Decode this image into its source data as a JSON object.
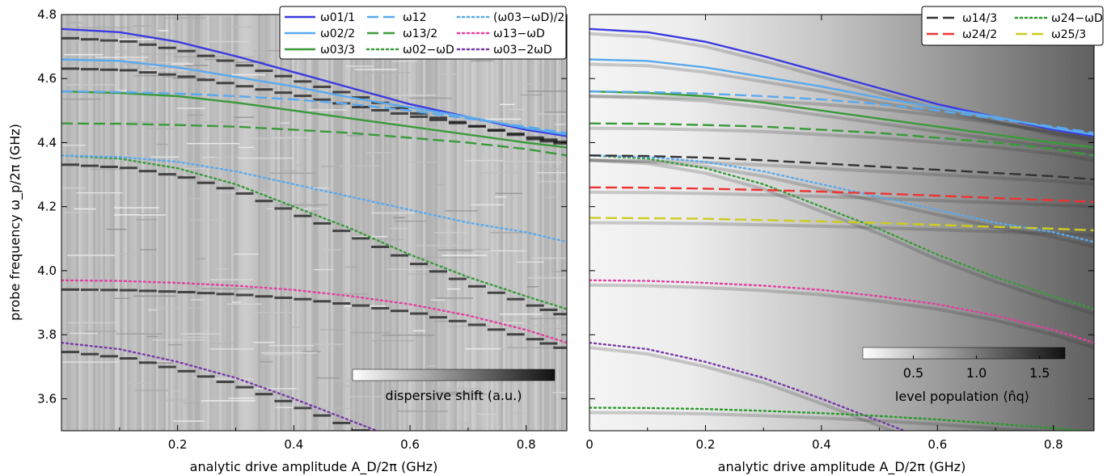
{
  "chart_data": [
    {
      "type": "line",
      "panel": "left",
      "xlabel": "analytic drive amplitude A_D/2π (GHz)",
      "ylabel": "probe frequency ω_p/2π (GHz)",
      "xlim": [
        0.0,
        0.87
      ],
      "ylim": [
        3.5,
        4.8
      ],
      "xticks": [
        {
          "v": 0.2,
          "label": "0.2"
        },
        {
          "v": 0.4,
          "label": "0.4"
        },
        {
          "v": 0.6,
          "label": "0.6"
        },
        {
          "v": 0.8,
          "label": "0.8"
        }
      ],
      "yticks": [
        {
          "v": 3.6,
          "label": "3.6"
        },
        {
          "v": 3.8,
          "label": "3.8"
        },
        {
          "v": 4.0,
          "label": "4.0"
        },
        {
          "v": 4.2,
          "label": "4.2"
        },
        {
          "v": 4.4,
          "label": "4.4"
        },
        {
          "v": 4.6,
          "label": "4.6"
        },
        {
          "v": 4.8,
          "label": "4.8"
        }
      ],
      "background": "measured dispersive shift map (grayscale)",
      "colorbar_label": "dispersive shift (a.u.)",
      "legend_location": "upper right",
      "series": [
        {
          "name": "ω01/1",
          "color": "#3b3be0",
          "dash": "solid",
          "x": [
            0.0,
            0.1,
            0.2,
            0.3,
            0.4,
            0.5,
            0.6,
            0.7,
            0.8,
            0.87
          ],
          "y": [
            4.755,
            4.745,
            4.715,
            4.67,
            4.62,
            4.57,
            4.52,
            4.48,
            4.44,
            4.42
          ]
        },
        {
          "name": "ω02/2",
          "color": "#5aa9ee",
          "dash": "solid",
          "x": [
            0.0,
            0.1,
            0.2,
            0.3,
            0.4,
            0.5,
            0.6,
            0.7,
            0.8,
            0.87
          ],
          "y": [
            4.66,
            4.655,
            4.635,
            4.605,
            4.575,
            4.54,
            4.51,
            4.48,
            4.445,
            4.425
          ]
        },
        {
          "name": "ω03/3",
          "color": "#3a9a3a",
          "dash": "solid",
          "x": [
            0.0,
            0.1,
            0.2,
            0.3,
            0.4,
            0.5,
            0.6,
            0.7,
            0.8,
            0.87
          ],
          "y": [
            4.56,
            4.555,
            4.545,
            4.525,
            4.5,
            4.475,
            4.45,
            4.425,
            4.4,
            4.385
          ]
        },
        {
          "name": "ω12",
          "color": "#5aa9ee",
          "dash": "dashed",
          "x": [
            0.0,
            0.1,
            0.2,
            0.3,
            0.4,
            0.5,
            0.6,
            0.7,
            0.8,
            0.87
          ],
          "y": [
            4.56,
            4.558,
            4.553,
            4.545,
            4.535,
            4.52,
            4.5,
            4.475,
            4.45,
            4.43
          ]
        },
        {
          "name": "ω13/2",
          "color": "#3a9a3a",
          "dash": "dashed",
          "x": [
            0.0,
            0.1,
            0.2,
            0.3,
            0.4,
            0.5,
            0.6,
            0.7,
            0.8,
            0.87
          ],
          "y": [
            4.46,
            4.459,
            4.455,
            4.45,
            4.44,
            4.43,
            4.415,
            4.4,
            4.38,
            4.36
          ]
        },
        {
          "name": "ω02−ωD",
          "color": "#3a9a3a",
          "dash": "dotted",
          "x": [
            0.0,
            0.1,
            0.2,
            0.3,
            0.4,
            0.5,
            0.6,
            0.7,
            0.8,
            0.87
          ],
          "y": [
            4.36,
            4.35,
            4.32,
            4.27,
            4.2,
            4.13,
            4.05,
            3.98,
            3.92,
            3.88
          ]
        },
        {
          "name": "(ω03−ωD)/2",
          "color": "#5aa9ee",
          "dash": "dotted",
          "x": [
            0.0,
            0.1,
            0.2,
            0.3,
            0.4,
            0.5,
            0.6,
            0.7,
            0.8,
            0.87
          ],
          "y": [
            4.36,
            4.355,
            4.34,
            4.31,
            4.27,
            4.23,
            4.19,
            4.15,
            4.12,
            4.09
          ]
        },
        {
          "name": "ω13−ωD",
          "color": "#e040a0",
          "dash": "dotted",
          "x": [
            0.0,
            0.1,
            0.2,
            0.3,
            0.4,
            0.5,
            0.6,
            0.7,
            0.8,
            0.87
          ],
          "y": [
            3.97,
            3.968,
            3.962,
            3.953,
            3.94,
            3.92,
            3.895,
            3.86,
            3.815,
            3.775
          ]
        },
        {
          "name": "ω03−2ωD",
          "color": "#7a3aaa",
          "dash": "dotted",
          "x": [
            0.0,
            0.1,
            0.2,
            0.3,
            0.4,
            0.5,
            0.6
          ],
          "y": [
            3.775,
            3.755,
            3.715,
            3.665,
            3.6,
            3.53,
            3.46
          ]
        }
      ],
      "annotations": []
    },
    {
      "type": "line",
      "panel": "right",
      "xlabel": "analytic drive amplitude A_D/2π (GHz)",
      "xlim": [
        0.0,
        0.87
      ],
      "ylim": [
        3.5,
        4.8
      ],
      "xticks": [
        {
          "v": 0.0,
          "label": "0"
        },
        {
          "v": 0.2,
          "label": "0.2"
        },
        {
          "v": 0.4,
          "label": "0.4"
        },
        {
          "v": 0.6,
          "label": "0.6"
        },
        {
          "v": 0.8,
          "label": "0.8"
        }
      ],
      "background": "simulated level population map (grayscale)",
      "colorbar_label": "level population ⟨n̂q⟩",
      "colorbar_ticks": [
        {
          "v": 0.5,
          "label": "0.5"
        },
        {
          "v": 1.0,
          "label": "1.0"
        },
        {
          "v": 1.5,
          "label": "1.5"
        }
      ],
      "colorbar_range": [
        0.1,
        1.7
      ],
      "legend_location": "upper right",
      "series": [
        {
          "name": "ω01/1",
          "color": "#3b3be0",
          "dash": "solid",
          "x": [
            0.0,
            0.1,
            0.2,
            0.3,
            0.4,
            0.5,
            0.6,
            0.7,
            0.8,
            0.87
          ],
          "y": [
            4.755,
            4.745,
            4.715,
            4.67,
            4.62,
            4.57,
            4.52,
            4.48,
            4.44,
            4.42
          ]
        },
        {
          "name": "ω02/2",
          "color": "#5aa9ee",
          "dash": "solid",
          "x": [
            0.0,
            0.1,
            0.2,
            0.3,
            0.4,
            0.5,
            0.6,
            0.7,
            0.8,
            0.87
          ],
          "y": [
            4.66,
            4.655,
            4.635,
            4.605,
            4.575,
            4.54,
            4.51,
            4.48,
            4.445,
            4.425
          ]
        },
        {
          "name": "ω03/3",
          "color": "#3a9a3a",
          "dash": "solid",
          "x": [
            0.0,
            0.1,
            0.2,
            0.3,
            0.4,
            0.5,
            0.6,
            0.7,
            0.8,
            0.87
          ],
          "y": [
            4.56,
            4.555,
            4.545,
            4.525,
            4.5,
            4.475,
            4.45,
            4.425,
            4.4,
            4.385
          ]
        },
        {
          "name": "ω12",
          "color": "#5aa9ee",
          "dash": "dashed",
          "x": [
            0.0,
            0.1,
            0.2,
            0.3,
            0.4,
            0.5,
            0.6,
            0.7,
            0.8,
            0.87
          ],
          "y": [
            4.56,
            4.558,
            4.553,
            4.545,
            4.535,
            4.52,
            4.5,
            4.475,
            4.45,
            4.43
          ]
        },
        {
          "name": "ω13/2",
          "color": "#3a9a3a",
          "dash": "dashed",
          "x": [
            0.0,
            0.1,
            0.2,
            0.3,
            0.4,
            0.5,
            0.6,
            0.7,
            0.8,
            0.87
          ],
          "y": [
            4.46,
            4.459,
            4.455,
            4.45,
            4.44,
            4.43,
            4.415,
            4.4,
            4.38,
            4.36
          ]
        },
        {
          "name": "ω02−ωD",
          "color": "#3a9a3a",
          "dash": "dotted",
          "x": [
            0.0,
            0.1,
            0.2,
            0.3,
            0.4,
            0.5,
            0.6,
            0.7,
            0.8,
            0.87
          ],
          "y": [
            4.36,
            4.35,
            4.32,
            4.27,
            4.2,
            4.13,
            4.05,
            3.98,
            3.92,
            3.88
          ]
        },
        {
          "name": "(ω03−ωD)/2",
          "color": "#5aa9ee",
          "dash": "dotted",
          "x": [
            0.0,
            0.1,
            0.2,
            0.3,
            0.4,
            0.5,
            0.6,
            0.7,
            0.8,
            0.87
          ],
          "y": [
            4.36,
            4.355,
            4.34,
            4.31,
            4.27,
            4.23,
            4.19,
            4.15,
            4.12,
            4.09
          ]
        },
        {
          "name": "ω13−ωD",
          "color": "#e040a0",
          "dash": "dotted",
          "x": [
            0.0,
            0.1,
            0.2,
            0.3,
            0.4,
            0.5,
            0.6,
            0.7,
            0.8,
            0.87
          ],
          "y": [
            3.97,
            3.968,
            3.962,
            3.953,
            3.94,
            3.92,
            3.895,
            3.86,
            3.815,
            3.775
          ]
        },
        {
          "name": "ω03−2ωD",
          "color": "#7a3aaa",
          "dash": "dotted",
          "x": [
            0.0,
            0.1,
            0.2,
            0.3,
            0.4,
            0.5,
            0.6
          ],
          "y": [
            3.775,
            3.755,
            3.715,
            3.665,
            3.6,
            3.53,
            3.46
          ]
        },
        {
          "name": "ω14/3",
          "color": "#333333",
          "dash": "dashed",
          "x": [
            0.0,
            0.1,
            0.2,
            0.3,
            0.4,
            0.5,
            0.6,
            0.7,
            0.8,
            0.87
          ],
          "y": [
            4.36,
            4.358,
            4.353,
            4.345,
            4.335,
            4.325,
            4.315,
            4.305,
            4.295,
            4.285
          ]
        },
        {
          "name": "ω24/2",
          "color": "#ee3333",
          "dash": "dashed",
          "x": [
            0.0,
            0.1,
            0.2,
            0.3,
            0.4,
            0.5,
            0.6,
            0.7,
            0.8,
            0.87
          ],
          "y": [
            4.26,
            4.259,
            4.256,
            4.252,
            4.247,
            4.241,
            4.234,
            4.227,
            4.22,
            4.215
          ]
        },
        {
          "name": "ω24−ωD",
          "color": "#2a9a2a",
          "dash": "dotted",
          "x": [
            0.0,
            0.1,
            0.2,
            0.3,
            0.4,
            0.5,
            0.6,
            0.7,
            0.8,
            0.87
          ],
          "y": [
            3.572,
            3.571,
            3.568,
            3.562,
            3.555,
            3.546,
            3.535,
            3.522,
            3.508,
            3.497
          ]
        },
        {
          "name": "ω25/3",
          "color": "#cccc22",
          "dash": "dashed",
          "x": [
            0.0,
            0.1,
            0.2,
            0.3,
            0.4,
            0.5,
            0.6,
            0.7,
            0.8,
            0.87
          ],
          "y": [
            4.165,
            4.164,
            4.162,
            4.158,
            4.154,
            4.149,
            4.143,
            4.137,
            4.131,
            4.126
          ]
        }
      ]
    }
  ],
  "legend_left": {
    "columns": [
      [
        "ω01/1",
        "ω02/2",
        "ω03/3"
      ],
      [
        "ω12",
        "ω13/2",
        "ω02−ωD"
      ],
      [
        "(ω03−ωD)/2",
        "ω13−ωD",
        "ω03−2ωD"
      ]
    ]
  },
  "legend_right": {
    "columns": [
      [
        "ω14/3",
        "ω24/2"
      ],
      [
        "ω24−ωD",
        "ω25/3"
      ]
    ]
  }
}
